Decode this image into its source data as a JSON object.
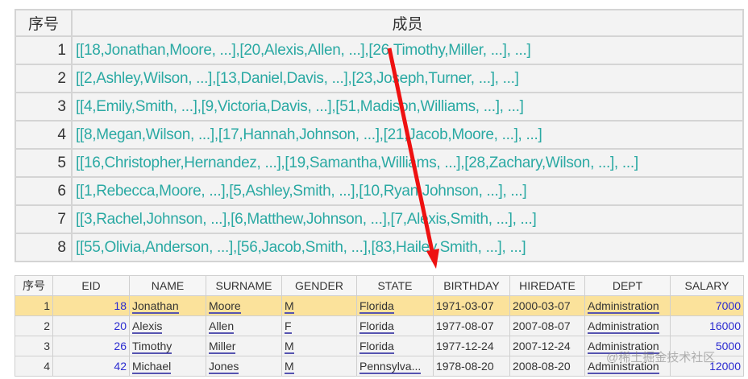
{
  "top_table": {
    "headers": [
      "序号",
      "成员"
    ],
    "rows": [
      {
        "idx": "1",
        "members": "[[18,Jonathan,Moore, ...],[20,Alexis,Allen, ...],[26,Timothy,Miller, ...], ...]"
      },
      {
        "idx": "2",
        "members": "[[2,Ashley,Wilson, ...],[13,Daniel,Davis, ...],[23,Joseph,Turner, ...], ...]"
      },
      {
        "idx": "3",
        "members": "[[4,Emily,Smith, ...],[9,Victoria,Davis, ...],[51,Madison,Williams, ...], ...]"
      },
      {
        "idx": "4",
        "members": "[[8,Megan,Wilson, ...],[17,Hannah,Johnson, ...],[21,Jacob,Moore, ...], ...]"
      },
      {
        "idx": "5",
        "members": "[[16,Christopher,Hernandez, ...],[19,Samantha,Williams, ...],[28,Zachary,Wilson, ...], ...]"
      },
      {
        "idx": "6",
        "members": "[[1,Rebecca,Moore, ...],[5,Ashley,Smith, ...],[10,Ryan,Johnson, ...], ...]"
      },
      {
        "idx": "7",
        "members": "[[3,Rachel,Johnson, ...],[6,Matthew,Johnson, ...],[7,Alexis,Smith, ...], ...]"
      },
      {
        "idx": "8",
        "members": "[[55,Olivia,Anderson, ...],[56,Jacob,Smith, ...],[83,Hailey,Smith, ...], ...]"
      }
    ]
  },
  "bottom_table": {
    "headers": [
      "序号",
      "EID",
      "NAME",
      "SURNAME",
      "GENDER",
      "STATE",
      "BIRTHDAY",
      "HIREDATE",
      "DEPT",
      "SALARY"
    ],
    "rows": [
      [
        "1",
        "18",
        "Jonathan",
        "Moore",
        "M",
        "Florida",
        "1971-03-07",
        "2000-03-07",
        "Administration",
        "7000"
      ],
      [
        "2",
        "20",
        "Alexis",
        "Allen",
        "F",
        "Florida",
        "1977-08-07",
        "2007-08-07",
        "Administration",
        "16000"
      ],
      [
        "3",
        "26",
        "Timothy",
        "Miller",
        "M",
        "Florida",
        "1977-12-24",
        "2007-12-24",
        "Administration",
        "5000"
      ],
      [
        "4",
        "42",
        "Michael",
        "Jones",
        "M",
        "Pennsylva...",
        "1978-08-20",
        "2008-08-20",
        "Administration",
        "12000"
      ]
    ],
    "selected_row": 1
  },
  "watermark": "@稀土掘金技术社区",
  "colors": {
    "member_text": "#2aa9a3",
    "arrow": "#ee1111",
    "selected_row": "#fbe29b",
    "number_text": "#2b2bd0"
  }
}
